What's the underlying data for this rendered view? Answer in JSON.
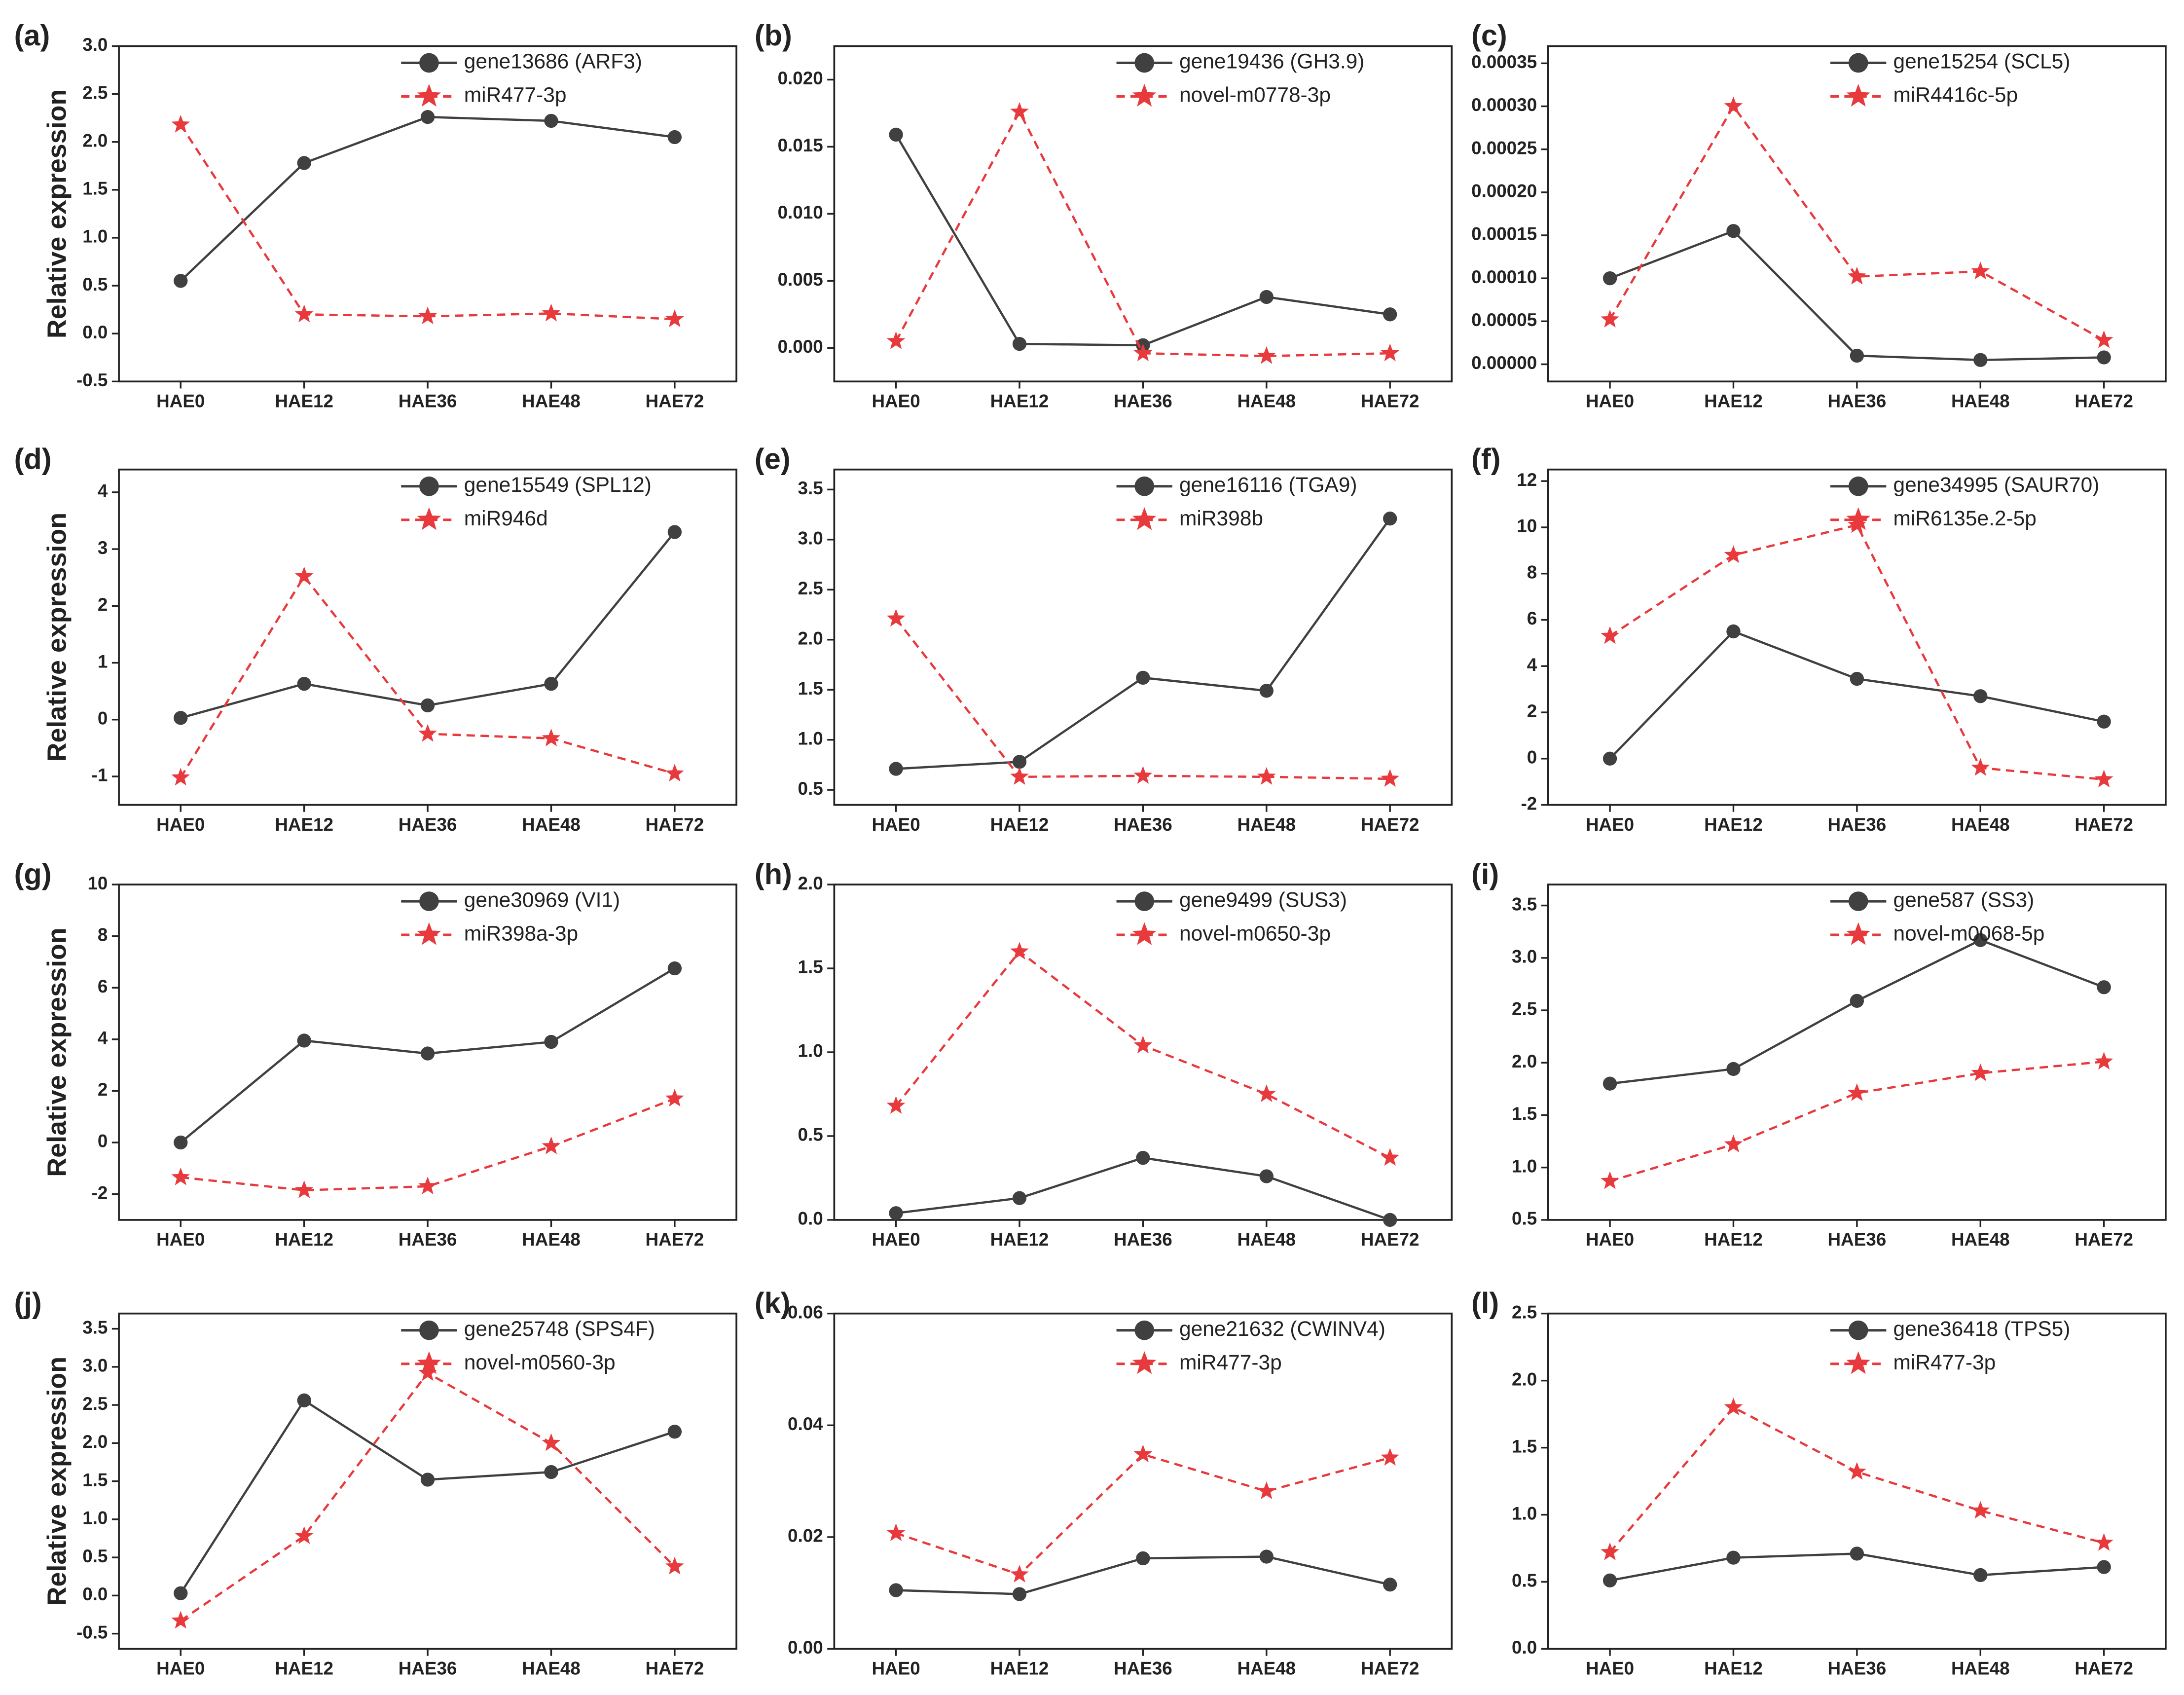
{
  "chart_data": [
    {
      "type": "line",
      "panel": "(a)",
      "ylabel": "Relative expression",
      "categories": [
        "HAE0",
        "HAE12",
        "HAE36",
        "HAE48",
        "HAE72"
      ],
      "series": [
        {
          "name": "gene13686 (ARF3)",
          "color": "#404040",
          "marker": "circle",
          "dashed": false,
          "values": [
            0.55,
            1.78,
            2.26,
            2.22,
            2.05
          ]
        },
        {
          "name": "miR477-3p",
          "color": "#e8393c",
          "marker": "star",
          "dashed": true,
          "values": [
            2.18,
            0.2,
            0.18,
            0.21,
            0.15
          ]
        }
      ],
      "ylim": [
        -0.5,
        3.0
      ],
      "yticks": [
        -0.5,
        {
          "value": 0,
          "label": "0.0"
        },
        0.5,
        {
          "value": 1,
          "label": "1.0"
        },
        1.5,
        {
          "value": 2,
          "label": "2.0"
        },
        2.5,
        {
          "value": 3,
          "label": "3.0"
        }
      ]
    },
    {
      "type": "line",
      "panel": "(b)",
      "categories": [
        "HAE0",
        "HAE12",
        "HAE36",
        "HAE48",
        "HAE72"
      ],
      "series": [
        {
          "name": "gene19436 (GH3.9)",
          "color": "#404040",
          "marker": "circle",
          "dashed": false,
          "values": [
            0.0159,
            0.0003,
            0.0002,
            0.0038,
            0.0025
          ]
        },
        {
          "name": "novel-m0778-3p",
          "color": "#e8393c",
          "marker": "star",
          "dashed": true,
          "values": [
            0.0005,
            0.0176,
            -0.0004,
            -0.0006,
            -0.0004
          ]
        }
      ],
      "ylim": [
        -0.0025,
        0.0225
      ],
      "yticks": [
        {
          "value": 0,
          "label": "0.000"
        },
        {
          "value": 0.005,
          "label": "0.005"
        },
        {
          "value": 0.01,
          "label": "0.010"
        },
        {
          "value": 0.015,
          "label": "0.015"
        },
        {
          "value": 0.02,
          "label": "0.020"
        }
      ]
    },
    {
      "type": "line",
      "panel": "(c)",
      "categories": [
        "HAE0",
        "HAE12",
        "HAE36",
        "HAE48",
        "HAE72"
      ],
      "series": [
        {
          "name": "gene15254 (SCL5)",
          "color": "#404040",
          "marker": "circle",
          "dashed": false,
          "values": [
            0.0001,
            0.000155,
            1e-05,
            5e-06,
            8e-06
          ]
        },
        {
          "name": "miR4416c-5p",
          "color": "#e8393c",
          "marker": "star",
          "dashed": true,
          "values": [
            5.2e-05,
            0.0003,
            0.000102,
            0.000108,
            2.8e-05
          ]
        }
      ],
      "ylim": [
        -2e-05,
        0.00037
      ],
      "yticks": [
        {
          "value": 0,
          "label": "0.00000"
        },
        {
          "value": 5e-05,
          "label": "0.00005"
        },
        {
          "value": 0.0001,
          "label": "0.00010"
        },
        {
          "value": 0.00015,
          "label": "0.00015"
        },
        {
          "value": 0.0002,
          "label": "0.00020"
        },
        {
          "value": 0.00025,
          "label": "0.00025"
        },
        {
          "value": 0.0003,
          "label": "0.00030"
        },
        {
          "value": 0.00035,
          "label": "0.00035"
        }
      ]
    },
    {
      "type": "line",
      "panel": "(d)",
      "ylabel": "Relative expression",
      "categories": [
        "HAE0",
        "HAE12",
        "HAE36",
        "HAE48",
        "HAE72"
      ],
      "series": [
        {
          "name": "gene15549 (SPL12)",
          "color": "#404040",
          "marker": "circle",
          "dashed": false,
          "values": [
            0.03,
            0.63,
            0.25,
            0.63,
            3.3
          ]
        },
        {
          "name": "miR946d",
          "color": "#e8393c",
          "marker": "star",
          "dashed": true,
          "values": [
            -1.02,
            2.52,
            -0.25,
            -0.33,
            -0.95
          ]
        }
      ],
      "ylim": [
        -1.5,
        4.4
      ],
      "yticks": [
        -1,
        0,
        1,
        2,
        3,
        4
      ]
    },
    {
      "type": "line",
      "panel": "(e)",
      "categories": [
        "HAE0",
        "HAE12",
        "HAE36",
        "HAE48",
        "HAE72"
      ],
      "series": [
        {
          "name": "gene16116 (TGA9)",
          "color": "#404040",
          "marker": "circle",
          "dashed": false,
          "values": [
            0.71,
            0.78,
            1.62,
            1.49,
            3.21
          ]
        },
        {
          "name": "miR398b",
          "color": "#e8393c",
          "marker": "star",
          "dashed": true,
          "values": [
            2.21,
            0.63,
            0.64,
            0.63,
            0.61
          ]
        }
      ],
      "ylim": [
        0.35,
        3.7
      ],
      "yticks": [
        0.5,
        {
          "value": 1,
          "label": "1.0"
        },
        1.5,
        {
          "value": 2,
          "label": "2.0"
        },
        2.5,
        {
          "value": 3,
          "label": "3.0"
        },
        3.5
      ]
    },
    {
      "type": "line",
      "panel": "(f)",
      "categories": [
        "HAE0",
        "HAE12",
        "HAE36",
        "HAE48",
        "HAE72"
      ],
      "series": [
        {
          "name": "gene34995 (SAUR70)",
          "color": "#404040",
          "marker": "circle",
          "dashed": false,
          "values": [
            0,
            5.5,
            3.45,
            2.7,
            1.6
          ]
        },
        {
          "name": "miR6135e.2-5p",
          "color": "#e8393c",
          "marker": "star",
          "dashed": true,
          "values": [
            5.3,
            8.8,
            10.1,
            -0.4,
            -0.9
          ]
        }
      ],
      "ylim": [
        -2,
        12.5
      ],
      "yticks": [
        -2,
        0,
        2,
        4,
        6,
        8,
        10,
        12
      ]
    },
    {
      "type": "line",
      "panel": "(g)",
      "ylabel": "Relative expression",
      "categories": [
        "HAE0",
        "HAE12",
        "HAE36",
        "HAE48",
        "HAE72"
      ],
      "series": [
        {
          "name": "gene30969 (VI1)",
          "color": "#404040",
          "marker": "circle",
          "dashed": false,
          "values": [
            0,
            3.95,
            3.45,
            3.9,
            6.75
          ]
        },
        {
          "name": "miR398a-3p",
          "color": "#e8393c",
          "marker": "star",
          "dashed": true,
          "values": [
            -1.35,
            -1.85,
            -1.7,
            -0.15,
            1.7
          ]
        }
      ],
      "ylim": [
        -3,
        10
      ],
      "yticks": [
        -2,
        0,
        2,
        4,
        6,
        8,
        10
      ]
    },
    {
      "type": "line",
      "panel": "(h)",
      "categories": [
        "HAE0",
        "HAE12",
        "HAE36",
        "HAE48",
        "HAE72"
      ],
      "series": [
        {
          "name": "gene9499 (SUS3)",
          "color": "#404040",
          "marker": "circle",
          "dashed": false,
          "values": [
            0.04,
            0.13,
            0.37,
            0.26,
            0
          ]
        },
        {
          "name": "novel-m0650-3p",
          "color": "#e8393c",
          "marker": "star",
          "dashed": true,
          "values": [
            0.68,
            1.6,
            1.04,
            0.75,
            0.37
          ]
        }
      ],
      "ylim": [
        0,
        2.0
      ],
      "yticks": [
        {
          "value": 0,
          "label": "0.0"
        },
        0.5,
        {
          "value": 1,
          "label": "1.0"
        },
        1.5,
        {
          "value": 2,
          "label": "2.0"
        }
      ]
    },
    {
      "type": "line",
      "panel": "(i)",
      "categories": [
        "HAE0",
        "HAE12",
        "HAE36",
        "HAE48",
        "HAE72"
      ],
      "series": [
        {
          "name": "gene587 (SS3)",
          "color": "#404040",
          "marker": "circle",
          "dashed": false,
          "values": [
            1.8,
            1.94,
            2.59,
            3.17,
            2.72
          ]
        },
        {
          "name": "novel-m0068-5p",
          "color": "#e8393c",
          "marker": "star",
          "dashed": true,
          "values": [
            0.87,
            1.22,
            1.71,
            1.9,
            2.01
          ]
        }
      ],
      "ylim": [
        0.5,
        3.7
      ],
      "yticks": [
        0.5,
        {
          "value": 1,
          "label": "1.0"
        },
        1.5,
        {
          "value": 2,
          "label": "2.0"
        },
        2.5,
        {
          "value": 3,
          "label": "3.0"
        },
        3.5
      ]
    },
    {
      "type": "line",
      "panel": "(j)",
      "ylabel": "Relative expression",
      "categories": [
        "HAE0",
        "HAE12",
        "HAE36",
        "HAE48",
        "HAE72"
      ],
      "series": [
        {
          "name": "gene25748 (SPS4F)",
          "color": "#404040",
          "marker": "circle",
          "dashed": false,
          "values": [
            0.03,
            2.56,
            1.52,
            1.62,
            2.15
          ]
        },
        {
          "name": "novel-m0560-3p",
          "color": "#e8393c",
          "marker": "star",
          "dashed": true,
          "values": [
            -0.33,
            0.78,
            2.92,
            2.0,
            0.38
          ]
        }
      ],
      "ylim": [
        -0.7,
        3.7
      ],
      "yticks": [
        -0.5,
        {
          "value": 0,
          "label": "0.0"
        },
        0.5,
        {
          "value": 1,
          "label": "1.0"
        },
        1.5,
        {
          "value": 2,
          "label": "2.0"
        },
        2.5,
        {
          "value": 3,
          "label": "3.0"
        },
        3.5
      ]
    },
    {
      "type": "line",
      "panel": "(k)",
      "categories": [
        "HAE0",
        "HAE12",
        "HAE36",
        "HAE48",
        "HAE72"
      ],
      "series": [
        {
          "name": "gene21632 (CWINV4)",
          "color": "#404040",
          "marker": "circle",
          "dashed": false,
          "values": [
            0.0105,
            0.0098,
            0.0162,
            0.0165,
            0.0115
          ]
        },
        {
          "name": "miR477-3p",
          "color": "#e8393c",
          "marker": "star",
          "dashed": true,
          "values": [
            0.0207,
            0.0133,
            0.0348,
            0.0282,
            0.0342
          ]
        }
      ],
      "ylim": [
        0,
        0.06
      ],
      "yticks": [
        {
          "value": 0,
          "label": "0.00"
        },
        {
          "value": 0.02,
          "label": "0.02"
        },
        {
          "value": 0.04,
          "label": "0.04"
        },
        {
          "value": 0.06,
          "label": "0.06"
        }
      ]
    },
    {
      "type": "line",
      "panel": "(l)",
      "categories": [
        "HAE0",
        "HAE12",
        "HAE36",
        "HAE48",
        "HAE72"
      ],
      "series": [
        {
          "name": "gene36418 (TPS5)",
          "color": "#404040",
          "marker": "circle",
          "dashed": false,
          "values": [
            0.51,
            0.68,
            0.71,
            0.55,
            0.61
          ]
        },
        {
          "name": "miR477-3p",
          "color": "#e8393c",
          "marker": "star",
          "dashed": true,
          "values": [
            0.72,
            1.8,
            1.32,
            1.03,
            0.79
          ]
        }
      ],
      "ylim": [
        0,
        2.5
      ],
      "yticks": [
        {
          "value": 0,
          "label": "0.0"
        },
        0.5,
        {
          "value": 1,
          "label": "1.0"
        },
        1.5,
        {
          "value": 2,
          "label": "2.0"
        },
        2.5
      ]
    }
  ]
}
